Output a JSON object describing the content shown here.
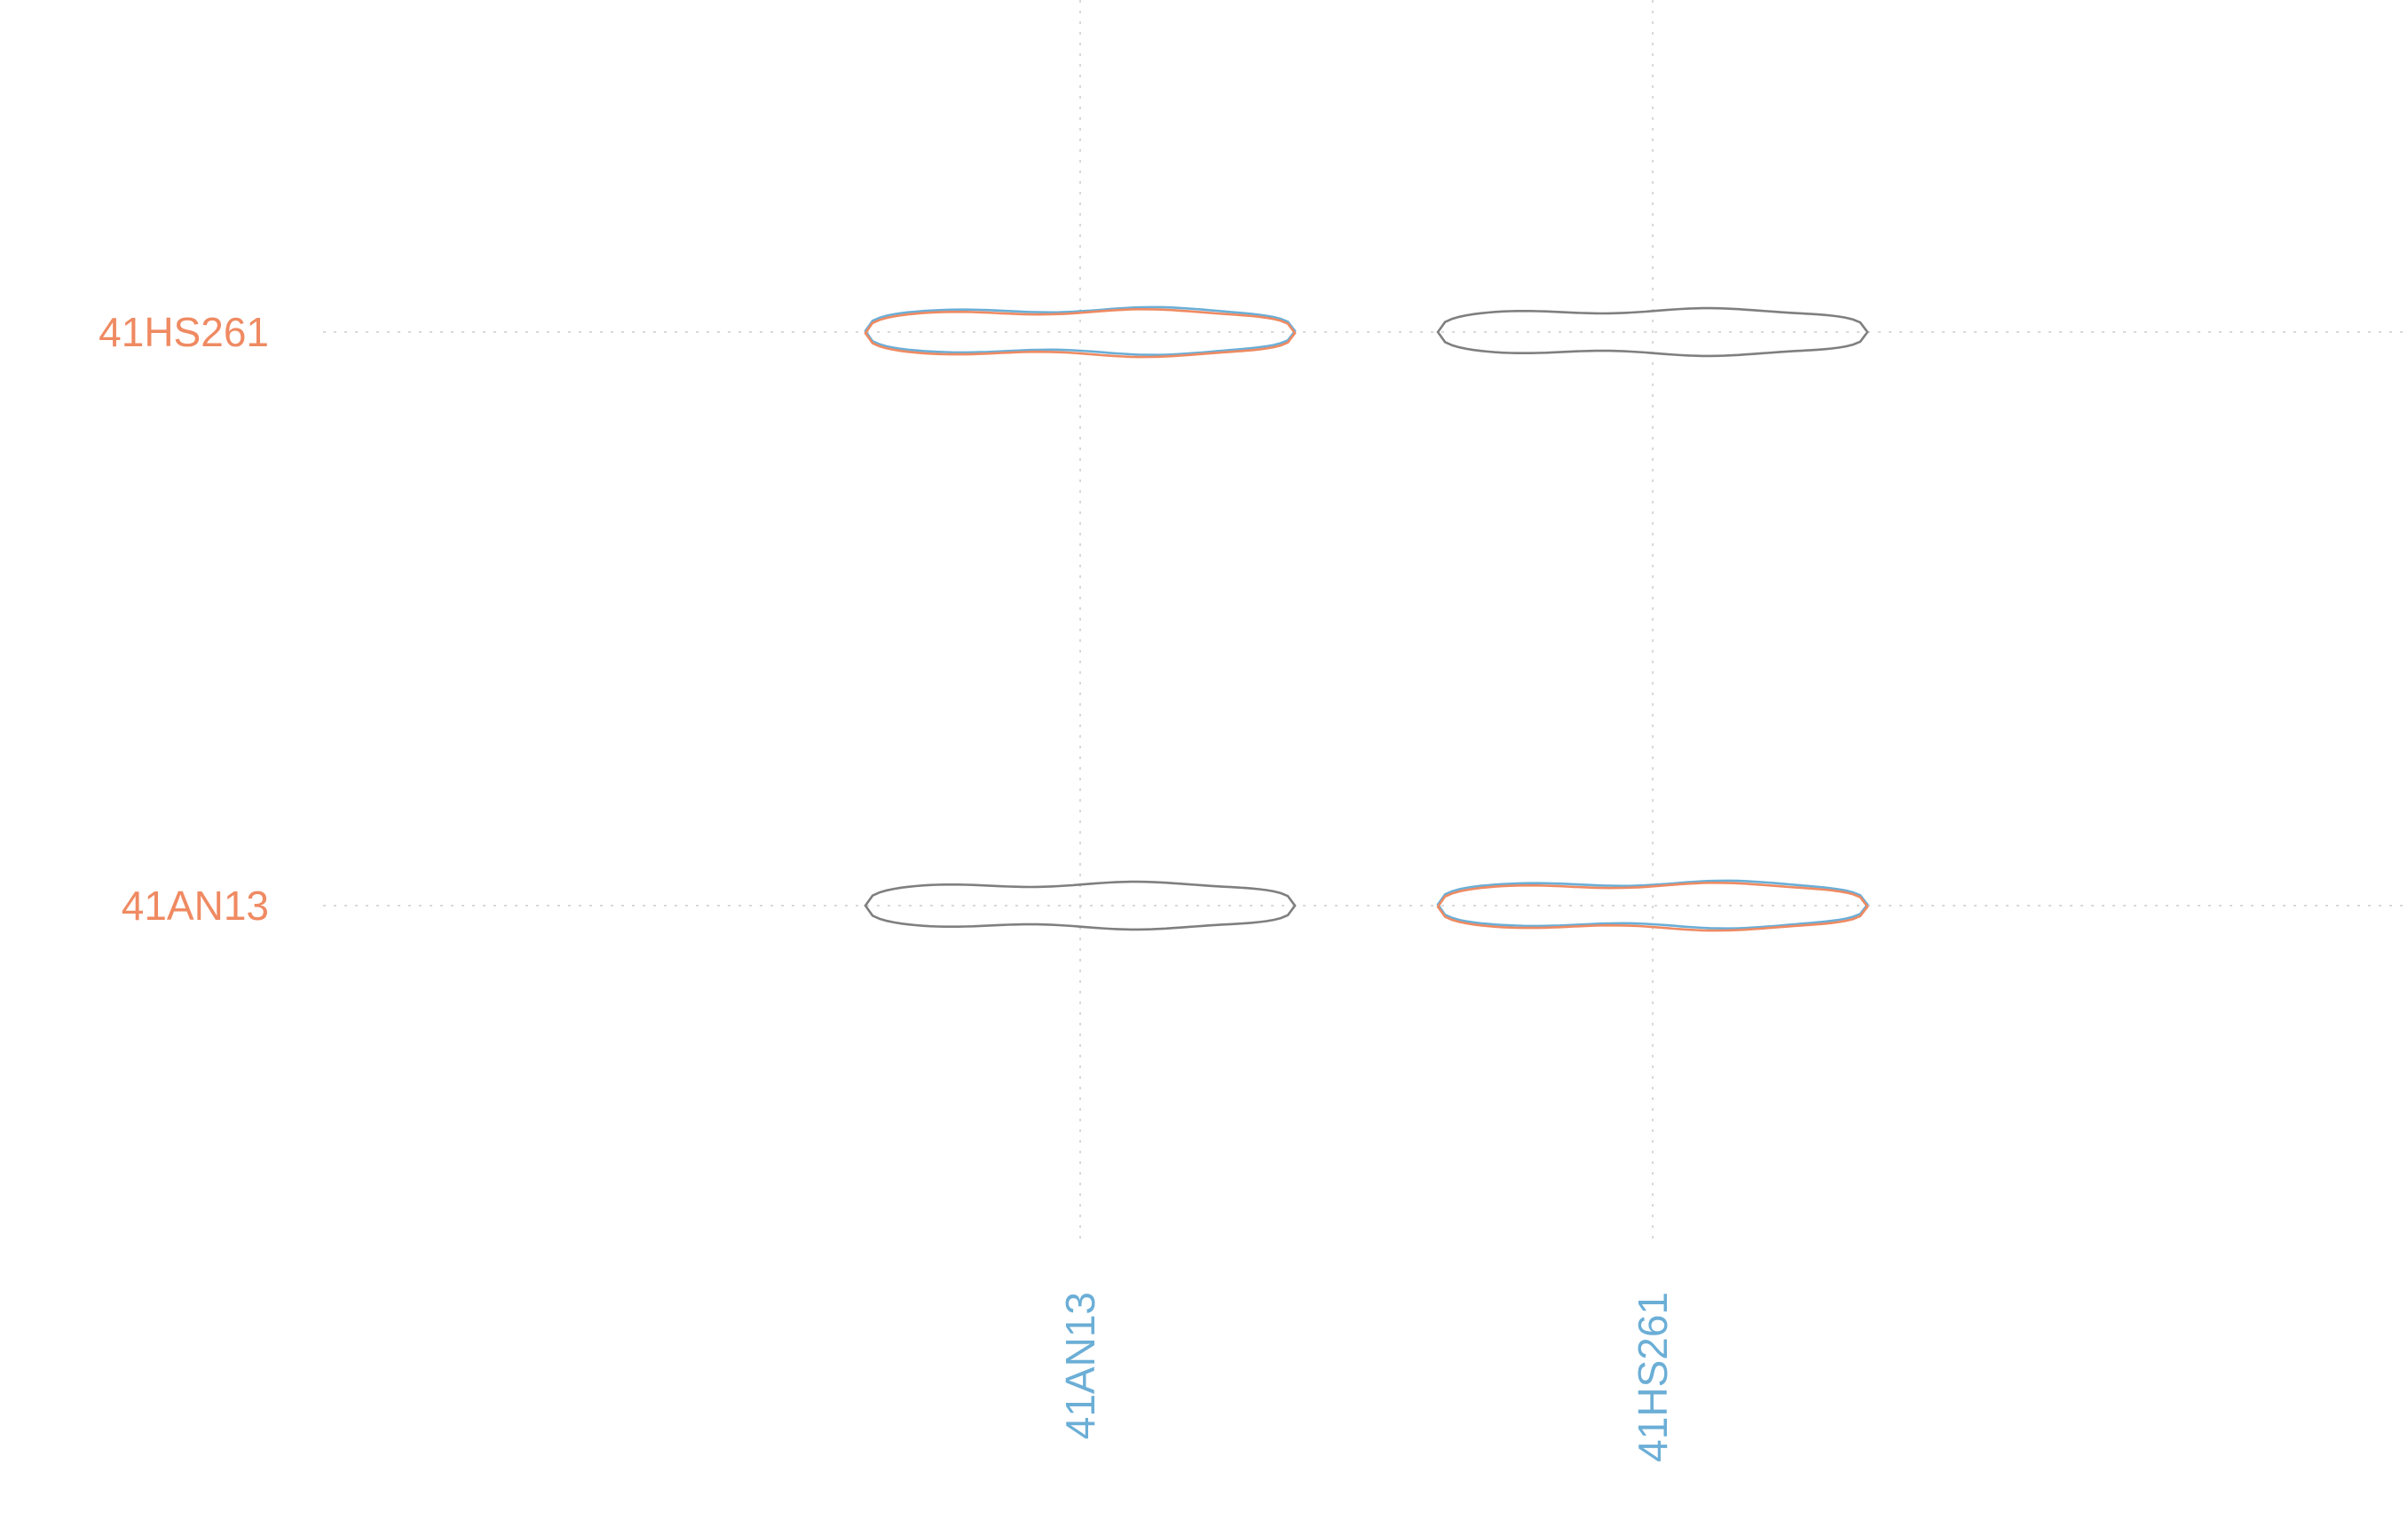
{
  "chart_data": {
    "type": "violin",
    "title": "",
    "xlabel": "",
    "ylabel": "",
    "x_categories": [
      "41AN13",
      "41HS261"
    ],
    "y_categories": [
      "41AN13",
      "41HS261"
    ],
    "x_label_color": "#6baed6",
    "y_label_color": "#ef8a62",
    "grid": true,
    "legend": "none",
    "series": [
      {
        "name": "",
        "color": "#6baed6",
        "cells": [
          {
            "x": "41AN13",
            "y": "41HS261",
            "relative_width": 1.0
          },
          {
            "x": "41HS261",
            "y": "41AN13",
            "relative_width": 1.0
          }
        ]
      },
      {
        "name": "",
        "color": "#ef8a62",
        "cells": [
          {
            "x": "41AN13",
            "y": "41HS261",
            "relative_width": 1.0
          },
          {
            "x": "41HS261",
            "y": "41AN13",
            "relative_width": 1.0
          }
        ]
      },
      {
        "name": "",
        "color": "#7f7f7f",
        "cells": [
          {
            "x": "41AN13",
            "y": "41AN13",
            "relative_width": 1.0
          },
          {
            "x": "41HS261",
            "y": "41HS261",
            "relative_width": 1.0
          }
        ]
      }
    ]
  }
}
